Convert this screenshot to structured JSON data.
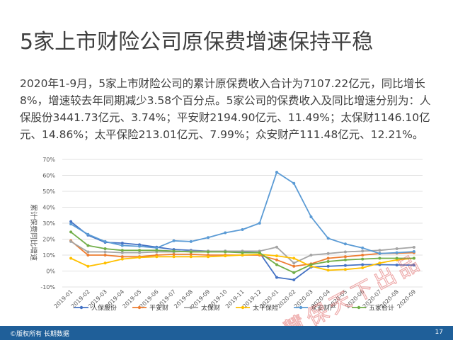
{
  "slide": {
    "title": "5家上市财险公司原保费增速保持平稳",
    "paragraph": "2020年1-9月，5家上市财险公司的累计原保费收入合计为7107.22亿元，同比增长8%，增速较去年同期减少3.58个百分点。5家公司的保费收入及同比增速分别为：人保股份3441.73亿元、3.74%；平安财2194.90亿元、11.49%；太保财1146.10亿元、14.86%；太平保险213.01亿元、7.99%；众安财产111.48亿元、12.21%。",
    "footer_left": "©版权所有 长期数据",
    "page_number": "17",
    "watermark": "慧保天下出品"
  },
  "chart_data": {
    "type": "line",
    "title": "",
    "xlabel": "",
    "ylabel": "累计保费同比增速",
    "ylim": [
      -10,
      70
    ],
    "yticks": [
      "-10%",
      "0%",
      "10%",
      "20%",
      "30%",
      "40%",
      "50%",
      "60%",
      "70%"
    ],
    "y_tick_values": [
      -10,
      0,
      10,
      20,
      30,
      40,
      50,
      60,
      70
    ],
    "grid": true,
    "legend_position": "bottom",
    "x": [
      "2019-01",
      "2019-02",
      "2019-03",
      "2019-04",
      "2019-05",
      "2019-06",
      "2019-07",
      "2019-08",
      "2019-09",
      "2019-10",
      "2019-11",
      "2019-12",
      "2020-01",
      "2020-02",
      "2020-03",
      "2020-04",
      "2020-05",
      "2020-06",
      "2020-07",
      "2020-08",
      "2020-09"
    ],
    "series": [
      {
        "name": "人保股份",
        "color": "#4472c4",
        "values": [
          31,
          22.5,
          18,
          17.5,
          16.5,
          15,
          13.5,
          13,
          12.5,
          12.5,
          12,
          11.5,
          -4,
          -5.5,
          2.5,
          3,
          3.5,
          4,
          4,
          3.8,
          3.7
        ]
      },
      {
        "name": "平安财",
        "color": "#ed7d31",
        "values": [
          19,
          10,
          10,
          9,
          9,
          10,
          10.5,
          10.5,
          10,
          10,
          10,
          10,
          7,
          3,
          4.5,
          8,
          9,
          10,
          11,
          11.2,
          11.5
        ]
      },
      {
        "name": "太保财",
        "color": "#a5a5a5",
        "values": [
          18.5,
          12,
          12,
          11.5,
          11.5,
          12,
          12,
          12.5,
          12.5,
          12.5,
          12.5,
          12.5,
          15,
          5,
          10,
          11,
          12,
          12.5,
          13,
          14,
          14.9
        ]
      },
      {
        "name": "太平保险",
        "color": "#ffc000",
        "values": [
          8,
          3,
          5,
          7.5,
          8.5,
          9,
          9,
          9,
          9,
          9.5,
          10,
          10.5,
          9.5,
          8,
          3,
          0.5,
          1,
          2,
          5,
          7,
          8
        ]
      },
      {
        "name": "众安财产",
        "color": "#5b9bd5",
        "values": [
          29.5,
          23,
          18.5,
          16,
          15.5,
          14.5,
          19,
          18.5,
          21,
          24,
          26,
          30,
          62,
          55,
          34,
          20.5,
          17,
          14.5,
          11,
          11.5,
          12.2
        ]
      },
      {
        "name": "五家合计",
        "color": "#70ad47",
        "values": [
          24.5,
          16,
          14,
          13,
          13,
          13,
          12.5,
          12,
          12,
          12,
          11.5,
          11.5,
          4,
          -1,
          4,
          6,
          7,
          7.5,
          8,
          8,
          8
        ]
      }
    ]
  }
}
